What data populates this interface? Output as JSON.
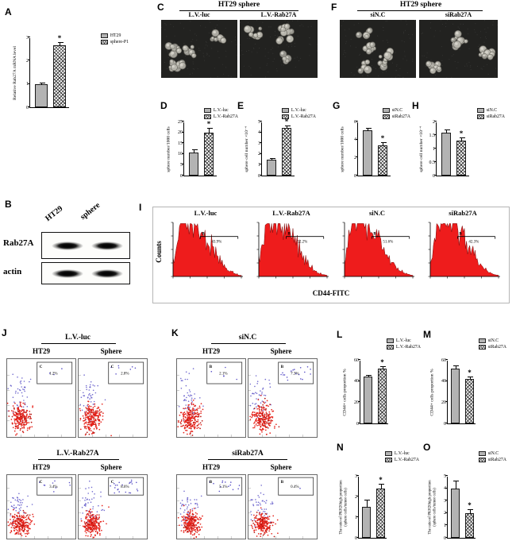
{
  "figure": {
    "panelA": {
      "label": "A"
    },
    "panelB": {
      "label": "B",
      "lane1": "HT29",
      "lane2": "sphere",
      "row1": "Rab27A",
      "row2": "actin"
    },
    "panelC": {
      "label": "C",
      "title": "HT29 sphere",
      "img1": "L.V.-luc",
      "img2": "L.V.-Rab27A"
    },
    "panelD": {
      "label": "D"
    },
    "panelE": {
      "label": "E"
    },
    "panelF": {
      "label": "F",
      "title": "HT29 sphere",
      "img1": "siN.C",
      "img2": "siRab27A"
    },
    "panelG": {
      "label": "G"
    },
    "panelH": {
      "label": "H"
    },
    "panelI": {
      "label": "I"
    },
    "panelJ": {
      "label": "J"
    },
    "panelK": {
      "label": "K"
    },
    "panelL": {
      "label": "L"
    },
    "panelM": {
      "label": "M"
    },
    "panelN": {
      "label": "N"
    },
    "panelO": {
      "label": "O"
    }
  },
  "colors": {
    "bar_gray": "#b3b3b3",
    "histogram_fill": "#ee1c1c",
    "histogram_stroke": "#7a0c0c",
    "scatter_red": "#e6231b",
    "scatter_red_dark": "#b5130d",
    "scatter_blue": "#5b52c7"
  },
  "chart_data": [
    {
      "id": "A",
      "type": "bar",
      "categories": [
        "HT29",
        "sphere-P1"
      ],
      "values": [
        1.0,
        2.65
      ],
      "errors": [
        0.05,
        0.15
      ],
      "sig": [
        false,
        true
      ],
      "ylabel": "Relative Rab27A mRNA level",
      "ylim": [
        0,
        3
      ],
      "yticks": [
        0,
        1,
        2,
        3
      ],
      "legend": [
        "HT29",
        "sphere-P1"
      ]
    },
    {
      "id": "D",
      "type": "bar",
      "categories": [
        "L.V.-luc",
        "L.V.-Rab27A"
      ],
      "values": [
        10.5,
        20
      ],
      "errors": [
        1.5,
        2
      ],
      "sig": [
        false,
        true
      ],
      "ylabel": "sphere number/1000 cells",
      "ylim": [
        0,
        25
      ],
      "yticks": [
        0,
        5,
        10,
        15,
        20,
        25
      ],
      "legend": [
        "L.V.-luc",
        "L.V.-Rab27A"
      ]
    },
    {
      "id": "E",
      "type": "bar",
      "categories": [
        "L.V.-luc",
        "L.V.-Rab27A"
      ],
      "values": [
        1.5,
        4.4
      ],
      "errors": [
        0.15,
        0.25
      ],
      "sig": [
        false,
        true
      ],
      "ylabel": "sphere cell number ×10⁻⁴",
      "ylim": [
        0,
        5
      ],
      "yticks": [
        0,
        1,
        2,
        3,
        4,
        5
      ],
      "legend": [
        "L.V.-luc",
        "L.V.-Rab27A"
      ]
    },
    {
      "id": "G",
      "type": "bar",
      "categories": [
        "siN.C",
        "siRab27A"
      ],
      "values": [
        5.0,
        3.4
      ],
      "errors": [
        0.3,
        0.3
      ],
      "sig": [
        false,
        true
      ],
      "ylabel": "sphere number/1000 cells",
      "ylim": [
        0,
        6
      ],
      "yticks": [
        0,
        2,
        4,
        6
      ],
      "legend": [
        "siN.C",
        "siRab27A"
      ]
    },
    {
      "id": "H",
      "type": "bar",
      "categories": [
        "siN.C",
        "siRab27A"
      ],
      "values": [
        1.6,
        1.3
      ],
      "errors": [
        0.12,
        0.1
      ],
      "sig": [
        false,
        true
      ],
      "ylabel": "sphere cell number ×10⁻⁴",
      "ylim": [
        0,
        2
      ],
      "yticks": [
        0,
        0.5,
        1,
        1.5,
        2
      ],
      "legend": [
        "siN.C",
        "siRab27A"
      ]
    },
    {
      "id": "I",
      "type": "histogram",
      "xlabel": "CD44-FITC",
      "ylabel": "Counts",
      "plots": [
        {
          "title": "L.V.-luc",
          "gate": "B",
          "percent": "43.9%"
        },
        {
          "title": "L.V.-Rab27A",
          "gate": "B",
          "percent": "52.2%"
        },
        {
          "title": "siN.C",
          "gate": "B",
          "percent": "51.6%"
        },
        {
          "title": "siRab27A",
          "gate": "B",
          "percent": "42.3%"
        }
      ]
    },
    {
      "id": "J",
      "type": "scatter",
      "groups": [
        {
          "title": "L.V.-luc",
          "plots": [
            {
              "col": "HT29",
              "gate": "C",
              "percent": "1.2%"
            },
            {
              "col": "Sphere",
              "gate": "C",
              "percent": "2.8%"
            }
          ]
        },
        {
          "title": "L.V.-Rab27A",
          "plots": [
            {
              "col": "HT29",
              "gate": "C",
              "percent": "3.4%"
            },
            {
              "col": "Sphere",
              "gate": "C",
              "percent": "8.6%"
            }
          ]
        }
      ]
    },
    {
      "id": "K",
      "type": "scatter",
      "groups": [
        {
          "title": "siN.C",
          "plots": [
            {
              "col": "HT29",
              "gate": "B",
              "percent": "2.1%"
            },
            {
              "col": "Sphere",
              "gate": "B",
              "percent": "7.3%"
            }
          ]
        },
        {
          "title": "siRab27A",
          "plots": [
            {
              "col": "HT29",
              "gate": "B",
              "percent": "5.1%"
            },
            {
              "col": "Sphere",
              "gate": "B",
              "percent": "0.4%"
            }
          ]
        }
      ]
    },
    {
      "id": "L",
      "type": "bar",
      "categories": [
        "L.V.-luc",
        "L.V.-Rab27A"
      ],
      "values": [
        44,
        52
      ],
      "errors": [
        2,
        2
      ],
      "sig": [
        false,
        true
      ],
      "ylabel": "CD44+ cells proportion %",
      "ylim": [
        0,
        60
      ],
      "yticks": [
        0,
        20,
        40,
        60
      ],
      "legend": [
        "L.V.-luc",
        "L.V.-Rab27A"
      ]
    },
    {
      "id": "M",
      "type": "bar",
      "categories": [
        "siN.C",
        "siRab27A"
      ],
      "values": [
        52,
        42
      ],
      "errors": [
        3,
        2
      ],
      "sig": [
        false,
        true
      ],
      "ylabel": "CD44+ cells proportion %",
      "ylim": [
        0,
        60
      ],
      "yticks": [
        0,
        20,
        40,
        60
      ],
      "legend": [
        "siN.C",
        "siRab27A"
      ]
    },
    {
      "id": "N",
      "type": "bar",
      "categories": [
        "L.V.-luc",
        "L.V.-Rab27A"
      ],
      "values": [
        1.5,
        2.4
      ],
      "errors": [
        0.35,
        0.2
      ],
      "sig": [
        false,
        true
      ],
      "ylabel": "The ratio of PKH26high proportion (sphere cells/tumor cells)",
      "ylim": [
        0,
        3
      ],
      "yticks": [
        0,
        1,
        2,
        3
      ],
      "legend": [
        "L.V.-luc",
        "L.V.-Rab27A"
      ]
    },
    {
      "id": "O",
      "type": "bar",
      "categories": [
        "siN.C",
        "siRab27A"
      ],
      "values": [
        4.0,
        2.0
      ],
      "errors": [
        0.6,
        0.3
      ],
      "sig": [
        false,
        true
      ],
      "ylabel": "The ratio of PKH26high proportion (sphere cells/tumor cells)",
      "ylim": [
        0,
        5
      ],
      "yticks": [
        0,
        1,
        2,
        3,
        4,
        5
      ],
      "legend": [
        "siN.C",
        "siRab27A"
      ]
    }
  ]
}
